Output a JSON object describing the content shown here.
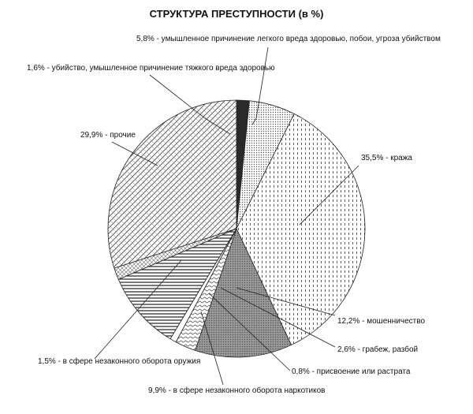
{
  "chart_data": {
    "type": "pie",
    "title": "СТРУКТУРА ПРЕСТУПНОСТИ  (в %)",
    "slices": [
      {
        "label": "1,6% - убийство, умышленное причинение тяжкого вреда здоровью",
        "value": 1.6
      },
      {
        "label": "5,8% - умышленное причинение легкого вреда здоровью, побои, угроза убийством",
        "value": 5.8
      },
      {
        "label": "35,5% - кража",
        "value": 35.5
      },
      {
        "label": "12,2% - мошенничество",
        "value": 12.2
      },
      {
        "label": "2,6% - грабеж, разбой",
        "value": 2.6
      },
      {
        "label": "0,8% - присвоение или растрата",
        "value": 0.8
      },
      {
        "label": "9,9% - в сфере незаконного оборота наркотиков",
        "value": 9.9
      },
      {
        "label": "1,5% - в сфере незаконного оборота оружия",
        "value": 1.5
      },
      {
        "label": "29,9% - прочие",
        "value": 29.9
      }
    ]
  }
}
